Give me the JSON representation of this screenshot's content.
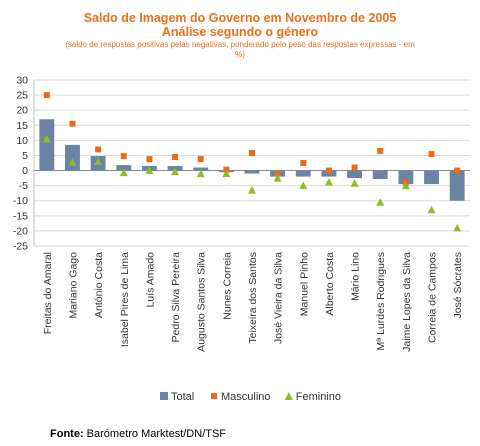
{
  "chart_data": {
    "type": "bar",
    "title": "Saldo de Imagem do Governo em Novembro de 2005",
    "subtitle": "Análise segundo o género",
    "note": "(saldo de respostas positivas pelas negativas, ponderado pelo peso das respostas expressas - em %)",
    "categories": [
      "Freitas do Amaral",
      "Mariano Gago",
      "António Costa",
      "Isabel Pires de Lima",
      "Luís Amado",
      "Pedro Silva Pereira",
      "Augusto Santos Silva",
      "Nunes Correia",
      "Teixeira dos Santos",
      "José Vieira da Silva",
      "Manuel Pinho",
      "Alberto Costa",
      "Mário Lino",
      "Mª Lurdes Rodrigues",
      "Jaime Lopes da Silva",
      "Correia de Campos",
      "José Sócrates"
    ],
    "series": [
      {
        "name": "Total",
        "style": "bar",
        "color": "#6a84a3",
        "values": [
          17,
          8.5,
          4.8,
          1.8,
          1.5,
          1.5,
          1,
          -0.5,
          -1,
          -2,
          -2,
          -2,
          -2.5,
          -2.8,
          -4.5,
          -4.5,
          -10
        ]
      },
      {
        "name": "Masculino",
        "style": "square",
        "color": "#ec6b17",
        "values": [
          25,
          15.5,
          7,
          4.8,
          3.8,
          4.5,
          3.8,
          0.3,
          5.8,
          -1,
          2.5,
          0,
          1,
          6.5,
          -4,
          5.5,
          0
        ]
      },
      {
        "name": "Feminino",
        "style": "triangle",
        "color": "#8ebd1f",
        "values": [
          10.5,
          2.8,
          3,
          -0.7,
          0,
          -0.3,
          -1,
          -1,
          -6.5,
          -2.5,
          -5,
          -3.8,
          -4.2,
          -10.5,
          -5,
          -13,
          -19
        ]
      }
    ],
    "ylim": [
      -25,
      30
    ],
    "yticks": [
      -25,
      -20,
      -15,
      -10,
      -5,
      0,
      5,
      10,
      15,
      20,
      25,
      30
    ],
    "grid": true,
    "legend_position": "bottom"
  },
  "footer": {
    "source_label": "Fonte:",
    "source_text": "Barómetro Marktest/DN/TSF"
  }
}
